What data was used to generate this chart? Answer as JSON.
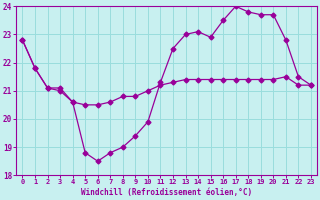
{
  "xlabel": "Windchill (Refroidissement éolien,°C)",
  "bg_color": "#c8f0f0",
  "line_color": "#990099",
  "grid_color": "#99dddd",
  "xlim": [
    -0.5,
    23.5
  ],
  "ylim": [
    18,
    24
  ],
  "yticks": [
    18,
    19,
    20,
    21,
    22,
    23,
    24
  ],
  "xticks": [
    0,
    1,
    2,
    3,
    4,
    5,
    6,
    7,
    8,
    9,
    10,
    11,
    12,
    13,
    14,
    15,
    16,
    17,
    18,
    19,
    20,
    21,
    22,
    23
  ],
  "line1_x": [
    0,
    1,
    2,
    3,
    4,
    5,
    6,
    7,
    8,
    9,
    10,
    11,
    12,
    13,
    14,
    15,
    16,
    17,
    18,
    19,
    20,
    21,
    22,
    23
  ],
  "line1_y": [
    22.8,
    21.8,
    21.1,
    21.1,
    20.6,
    20.5,
    20.5,
    20.6,
    20.8,
    20.8,
    21.0,
    21.2,
    21.3,
    21.4,
    21.4,
    21.4,
    21.4,
    21.4,
    21.4,
    21.4,
    21.4,
    21.5,
    21.2,
    21.2
  ],
  "line2_x": [
    0,
    1,
    2,
    3,
    4,
    5,
    6,
    7,
    8,
    9,
    10,
    11,
    12,
    13,
    14,
    15,
    16,
    17,
    18,
    19,
    20,
    21,
    22,
    23
  ],
  "line2_y": [
    22.8,
    21.8,
    21.1,
    21.0,
    20.6,
    18.8,
    18.5,
    18.8,
    19.0,
    19.4,
    19.9,
    21.3,
    22.5,
    23.0,
    23.1,
    22.9,
    23.5,
    24.0,
    23.8,
    23.7,
    23.7,
    22.8,
    21.5,
    21.2
  ]
}
